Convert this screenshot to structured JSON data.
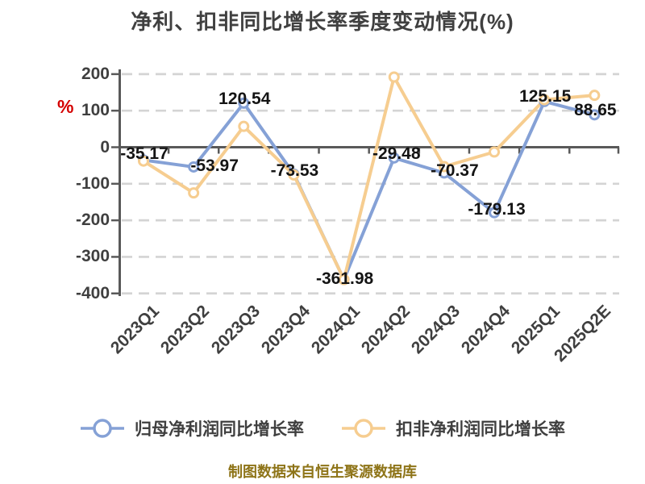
{
  "chart_data": {
    "type": "line",
    "title": "净利、扣非同比增长率季度变动情况(%)",
    "unit": "%",
    "categories": [
      "2023Q1",
      "2023Q2",
      "2023Q3",
      "2023Q4",
      "2024Q1",
      "2024Q2",
      "2024Q3",
      "2024Q4",
      "2025Q1",
      "2025Q2E"
    ],
    "series": [
      {
        "name": "归母净利润同比增长率",
        "color": "#85A1D6",
        "values": [
          -35.17,
          -53.97,
          120.54,
          -73.53,
          -361.98,
          -29.48,
          -70.37,
          -179.13,
          125.15,
          88.65
        ],
        "labels_shown": true
      },
      {
        "name": "扣非净利润同比增长率",
        "color": "#F6CD90",
        "values": [
          -38,
          -125,
          57,
          -76,
          -362,
          192,
          -53,
          -13,
          130,
          142
        ],
        "labels_shown": false
      }
    ],
    "ylim": [
      -400,
      200
    ],
    "yticks": [
      200,
      100,
      0,
      -100,
      -200,
      -300,
      -400
    ],
    "grid": "dashed-horizontal",
    "legend_position": "bottom",
    "marker": "circle-white-fill"
  },
  "footer": {
    "text": "制图数据来自恒生聚源数据库"
  },
  "colors": {
    "series_blue": "#85A1D6",
    "series_orange": "#F6CD90",
    "unit_label": "#D40000",
    "footer_text": "#8E7418",
    "title_text": "#404040",
    "axis_line": "#595959",
    "tick_label": "#3F3F3F",
    "data_label": "#141414",
    "gridline": "#D4D4D4",
    "background": "#FFFFFF"
  }
}
